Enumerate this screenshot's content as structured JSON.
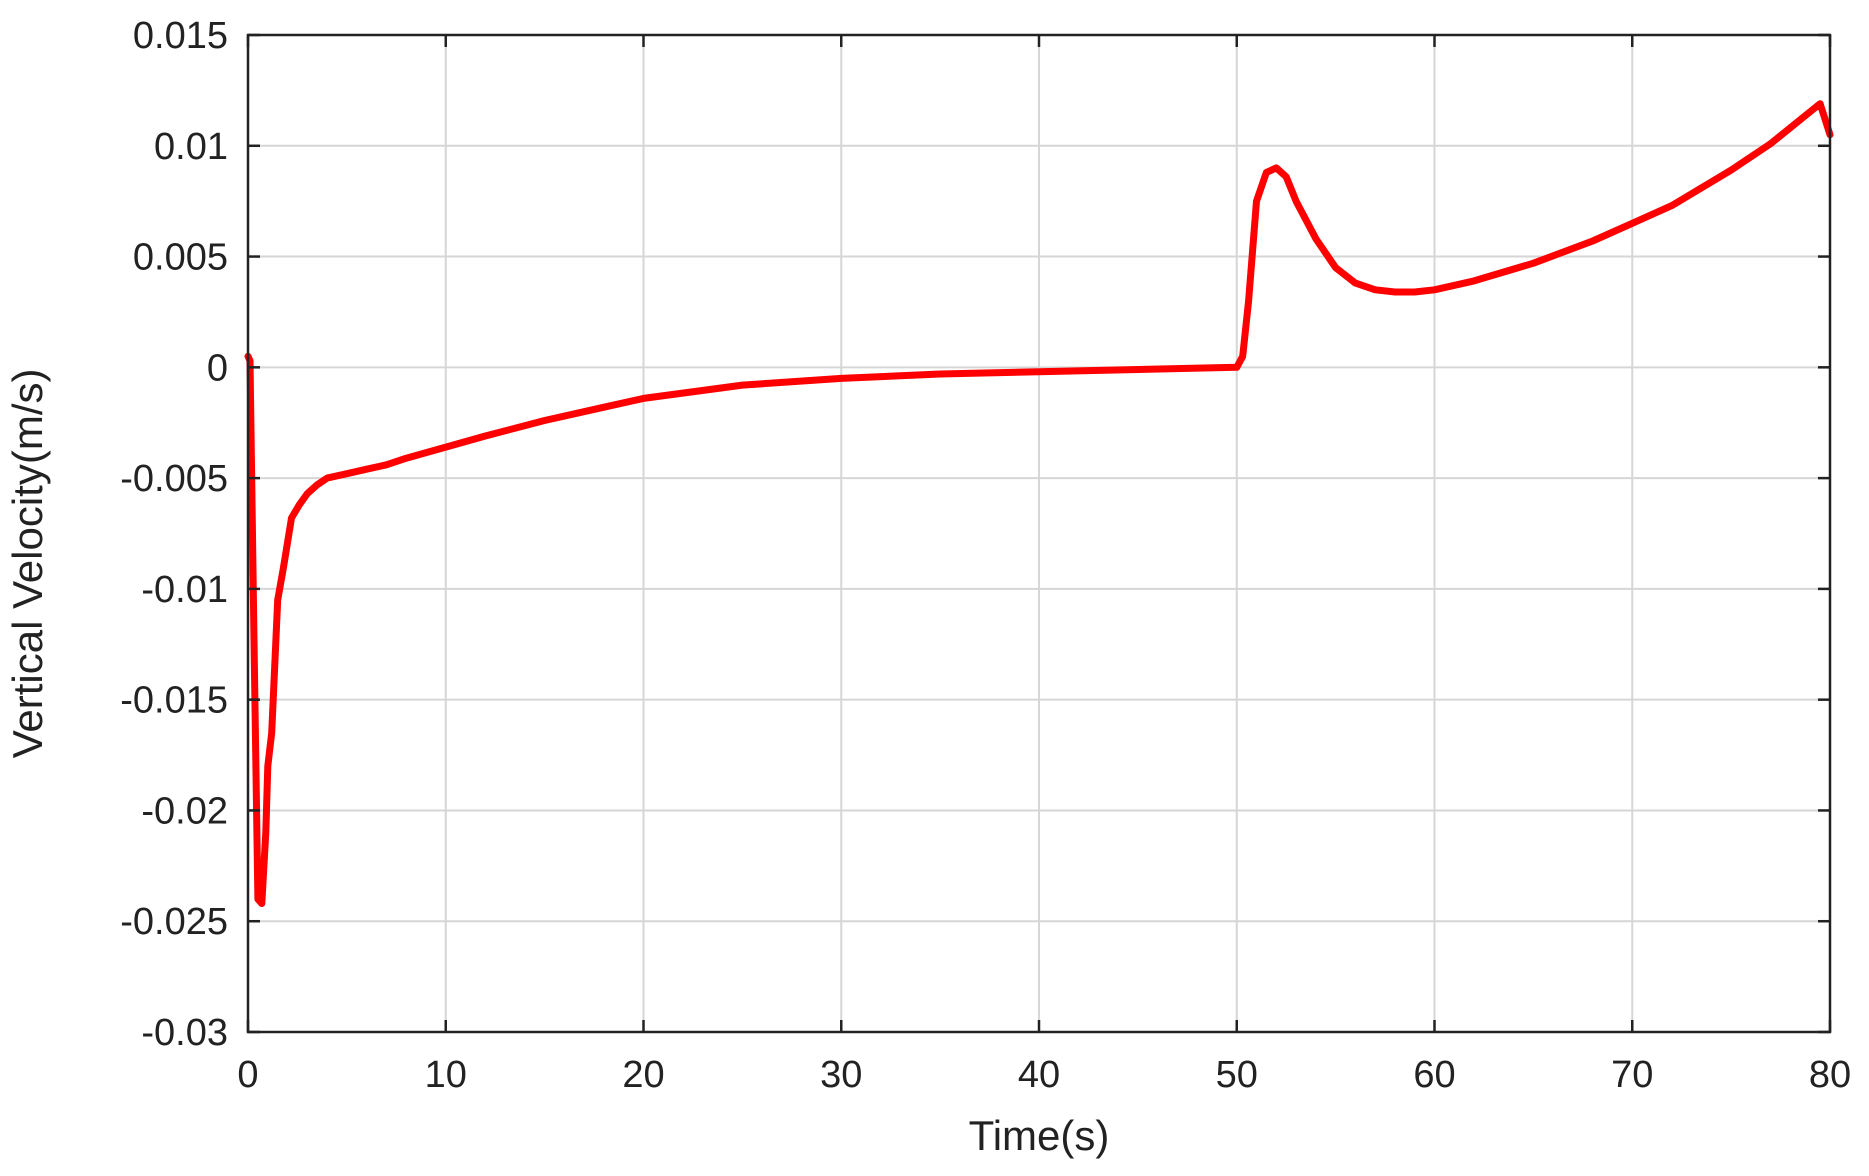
{
  "chart_data": {
    "type": "line",
    "title": "",
    "xlabel": "Time(s)",
    "ylabel": "Vertical Velocity(m/s)",
    "xlim": [
      0,
      80
    ],
    "ylim": [
      -0.03,
      0.015
    ],
    "x_ticks": [
      0,
      10,
      20,
      30,
      40,
      50,
      60,
      70,
      80
    ],
    "x_tick_labels": [
      "0",
      "10",
      "20",
      "30",
      "40",
      "50",
      "60",
      "70",
      "80"
    ],
    "y_ticks": [
      0.015,
      0.01,
      0.005,
      0,
      -0.005,
      -0.01,
      -0.015,
      -0.02,
      -0.025,
      -0.03
    ],
    "y_tick_labels": [
      "0.015",
      "0.01",
      "0.005",
      "0",
      "-0.005",
      "-0.01",
      "-0.015",
      "-0.02",
      "-0.025",
      "-0.03"
    ],
    "grid": true,
    "series": [
      {
        "color": "#ff0000",
        "x": [
          0,
          0.1,
          0.3,
          0.5,
          0.7,
          0.9,
          1.0,
          1.2,
          1.5,
          1.8,
          2.2,
          2.6,
          3.0,
          3.5,
          4.0,
          5,
          6,
          7,
          8,
          10,
          12,
          15,
          18,
          20,
          25,
          30,
          35,
          40,
          45,
          50,
          50.3,
          50.6,
          51,
          51.5,
          52,
          52.5,
          53,
          54,
          55,
          56,
          57,
          58,
          59,
          60,
          62,
          65,
          68,
          70,
          72,
          75,
          77,
          79.5,
          80
        ],
        "y": [
          0.0005,
          0.0003,
          -0.012,
          -0.024,
          -0.0242,
          -0.021,
          -0.018,
          -0.0165,
          -0.0105,
          -0.009,
          -0.0068,
          -0.0062,
          -0.0057,
          -0.0053,
          -0.005,
          -0.0048,
          -0.0046,
          -0.0044,
          -0.0041,
          -0.0036,
          -0.0031,
          -0.0024,
          -0.0018,
          -0.0014,
          -0.0008,
          -0.0005,
          -0.0003,
          -0.0002,
          -0.0001,
          0,
          0.0005,
          0.003,
          0.0075,
          0.0088,
          0.009,
          0.0086,
          0.0075,
          0.0058,
          0.0045,
          0.0038,
          0.0035,
          0.0034,
          0.0034,
          0.0035,
          0.0039,
          0.0047,
          0.0057,
          0.0065,
          0.0073,
          0.0089,
          0.0101,
          0.0119,
          0.0105
        ]
      }
    ]
  }
}
